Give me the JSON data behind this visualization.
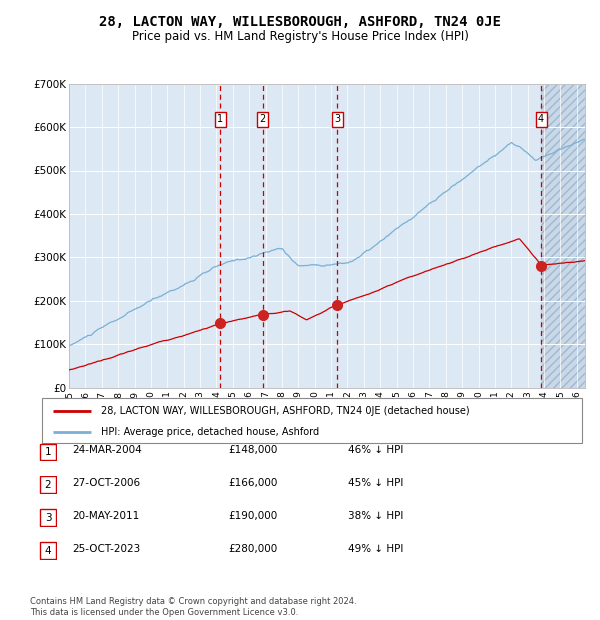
{
  "title": "28, LACTON WAY, WILLESBOROUGH, ASHFORD, TN24 0JE",
  "subtitle": "Price paid vs. HM Land Registry's House Price Index (HPI)",
  "title_fontsize": 10,
  "subtitle_fontsize": 8.5,
  "bg_color": "#dce9f5",
  "grid_color": "#ffffff",
  "hpi_color": "#7ab0d4",
  "price_color": "#cc0000",
  "sale_dates": [
    2004.23,
    2006.82,
    2011.38,
    2023.82
  ],
  "sale_prices": [
    148000,
    166000,
    190000,
    280000
  ],
  "sale_labels": [
    "1",
    "2",
    "3",
    "4"
  ],
  "ylim": [
    0,
    700000
  ],
  "yticks": [
    0,
    100000,
    200000,
    300000,
    400000,
    500000,
    600000,
    700000
  ],
  "ytick_labels": [
    "£0",
    "£100K",
    "£200K",
    "£300K",
    "£400K",
    "£500K",
    "£600K",
    "£700K"
  ],
  "xlim": [
    1995.0,
    2026.5
  ],
  "legend_line1": "28, LACTON WAY, WILLESBOROUGH, ASHFORD, TN24 0JE (detached house)",
  "legend_line2": "HPI: Average price, detached house, Ashford",
  "table_data": [
    [
      "1",
      "24-MAR-2004",
      "£148,000",
      "46% ↓ HPI"
    ],
    [
      "2",
      "27-OCT-2006",
      "£166,000",
      "45% ↓ HPI"
    ],
    [
      "3",
      "20-MAY-2011",
      "£190,000",
      "38% ↓ HPI"
    ],
    [
      "4",
      "25-OCT-2023",
      "£280,000",
      "49% ↓ HPI"
    ]
  ],
  "footnote": "Contains HM Land Registry data © Crown copyright and database right 2024.\nThis data is licensed under the Open Government Licence v3.0."
}
